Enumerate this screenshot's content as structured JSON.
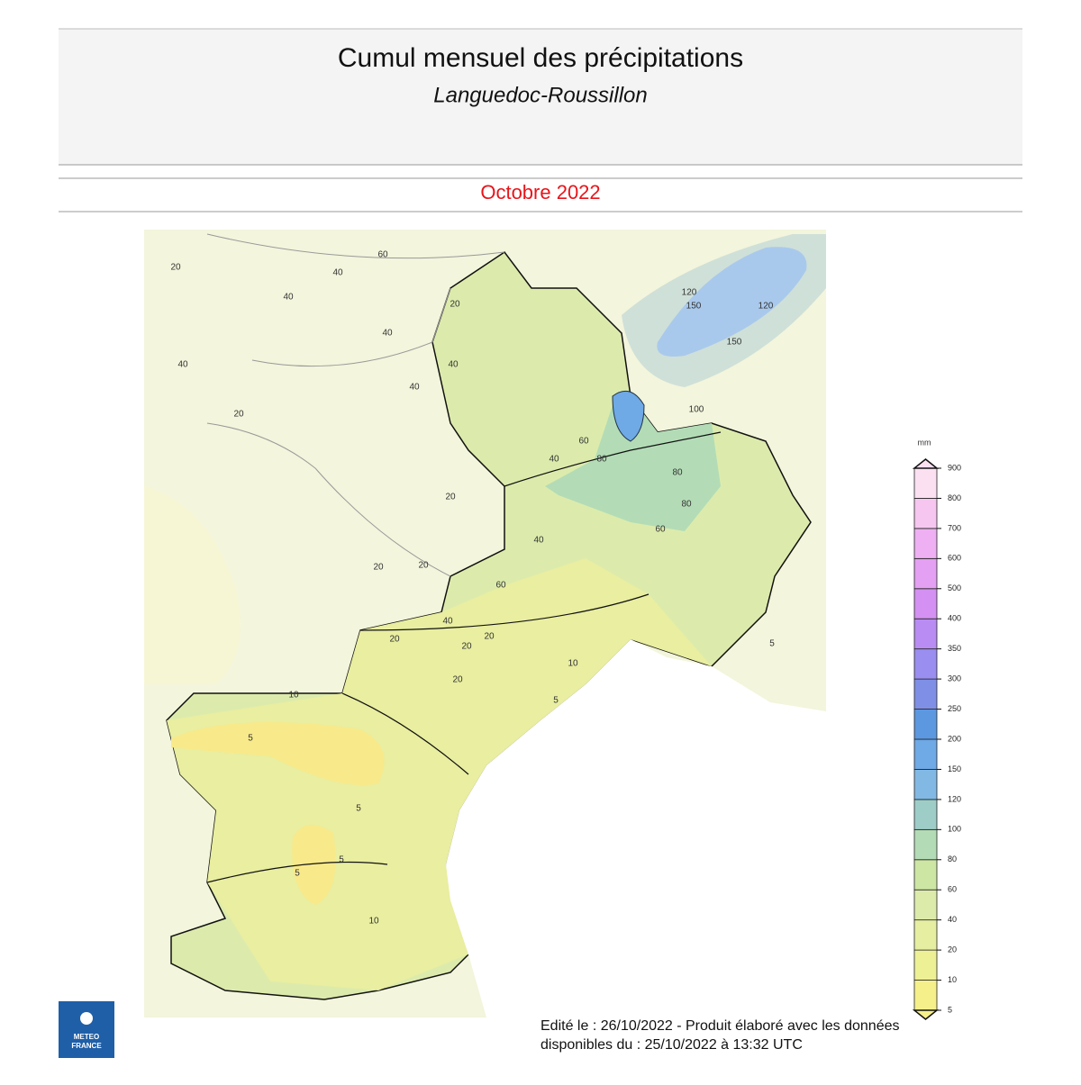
{
  "header": {
    "title": "Cumul mensuel des précipitations",
    "subtitle": "Languedoc-Roussillon",
    "period": "Octobre 2022"
  },
  "legend": {
    "unit": "mm",
    "ticks": [
      5,
      10,
      20,
      40,
      60,
      80,
      100,
      120,
      150,
      200,
      250,
      300,
      350,
      400,
      500,
      600,
      700,
      800,
      900
    ],
    "colors": [
      "#f6f08a",
      "#eef096",
      "#e6eea2",
      "#dcebaa",
      "#cde6a4",
      "#b3dcb6",
      "#9ecdc8",
      "#82b9e4",
      "#6fa9e6",
      "#5c98e0",
      "#7f8fe6",
      "#9a8ef0",
      "#b88cf2",
      "#d490f2",
      "#e4a0f2",
      "#eeb0f2",
      "#f6c6f0",
      "#fbe0f2"
    ]
  },
  "contour_labels": [
    20,
    40,
    60,
    40,
    80,
    80,
    80,
    60,
    40,
    60,
    40,
    20,
    20,
    20,
    20,
    10,
    5,
    10,
    5,
    5,
    5,
    5,
    10,
    150,
    120,
    150,
    120,
    100,
    20,
    40,
    40,
    60,
    40,
    40,
    20,
    40,
    20,
    20,
    20,
    5
  ],
  "footer": {
    "line1": "Edité le : 26/10/2022 - Produit élaboré avec les données",
    "line2": "disponibles du : 25/10/2022 à 13:32 UTC"
  },
  "logo": {
    "line1": "METEO",
    "line2": "FRANCE"
  }
}
